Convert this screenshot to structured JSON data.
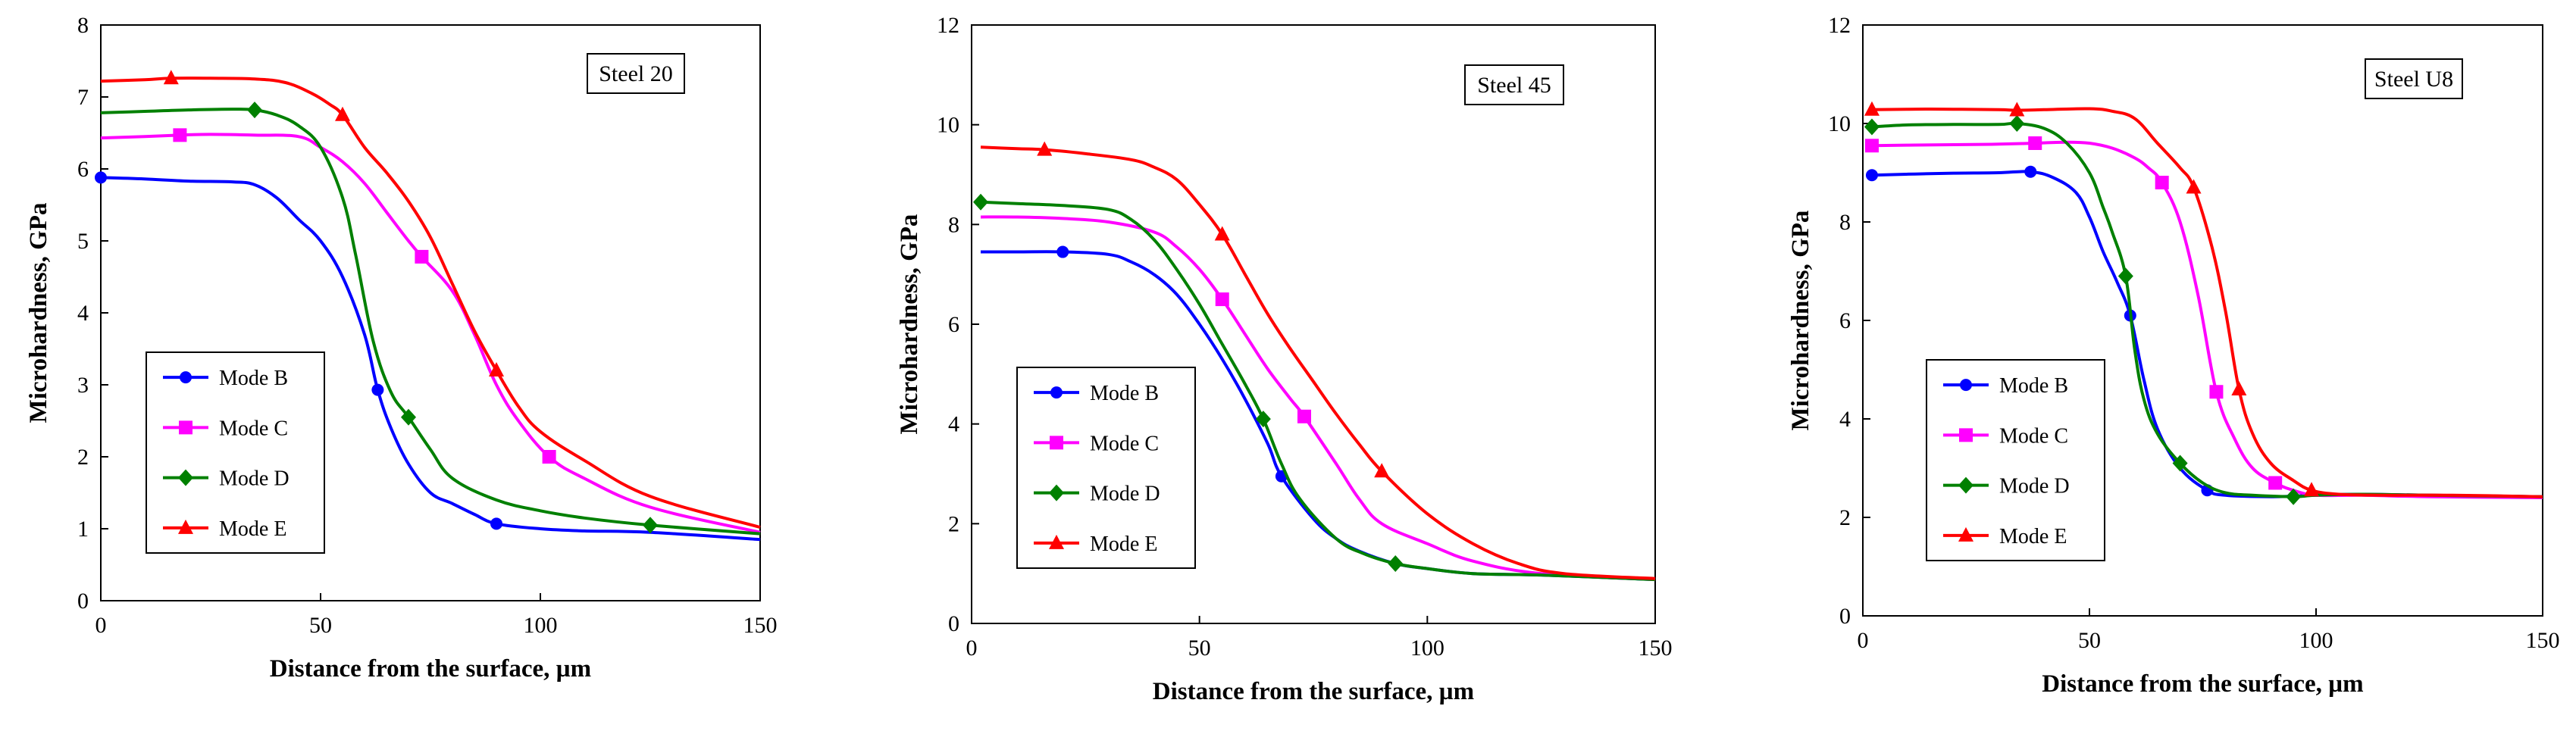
{
  "chart_data": [
    {
      "type": "line",
      "annotation": "Steel 20",
      "xlabel": "Distance from the surface, µm",
      "ylabel": "Microhardness, GPa",
      "xlim": [
        0,
        150
      ],
      "ylim": [
        0,
        8
      ],
      "xticks": [
        0,
        50,
        100,
        150
      ],
      "yticks": [
        0,
        1,
        2,
        3,
        4,
        5,
        6,
        7,
        8
      ],
      "legend_position": "bottom-left",
      "series": [
        {
          "name": "Mode B",
          "color": "#0000FF",
          "marker": "circle",
          "x": [
            0,
            10,
            20,
            30,
            35,
            40,
            45,
            50,
            55,
            60,
            63,
            66,
            70,
            75,
            80,
            85,
            90,
            100,
            110,
            125,
            150
          ],
          "y": [
            5.88,
            5.86,
            5.83,
            5.82,
            5.78,
            5.6,
            5.3,
            5.0,
            4.5,
            3.7,
            2.93,
            2.4,
            1.9,
            1.5,
            1.35,
            1.2,
            1.07,
            1.0,
            0.97,
            0.95,
            0.85
          ],
          "marker_indices": [
            0,
            10,
            16
          ]
        },
        {
          "name": "Mode C",
          "color": "#FF00FF",
          "marker": "square",
          "x": [
            0,
            10,
            18,
            25,
            35,
            45,
            50,
            55,
            60,
            65,
            70,
            73,
            80,
            85,
            90,
            95,
            102,
            110,
            125,
            150
          ],
          "y": [
            6.43,
            6.45,
            6.47,
            6.48,
            6.47,
            6.45,
            6.3,
            6.1,
            5.8,
            5.4,
            5.0,
            4.78,
            4.3,
            3.7,
            3.0,
            2.5,
            2.0,
            1.7,
            1.3,
            0.95
          ],
          "marker_indices": [
            2,
            11,
            16
          ]
        },
        {
          "name": "Mode D",
          "color": "#008000",
          "marker": "diamond",
          "x": [
            0,
            10,
            20,
            30,
            35,
            40,
            45,
            50,
            55,
            58,
            62,
            66,
            70,
            75,
            80,
            90,
            100,
            110,
            125,
            150
          ],
          "y": [
            6.78,
            6.8,
            6.82,
            6.83,
            6.82,
            6.75,
            6.6,
            6.3,
            5.6,
            4.8,
            3.6,
            2.9,
            2.55,
            2.1,
            1.7,
            1.4,
            1.25,
            1.15,
            1.05,
            0.93
          ],
          "marker_indices": [
            4,
            12,
            18
          ]
        },
        {
          "name": "Mode E",
          "color": "#FF0000",
          "marker": "triangle",
          "x": [
            0,
            10,
            16,
            25,
            35,
            42,
            48,
            52,
            55,
            60,
            65,
            70,
            75,
            80,
            85,
            90,
            95,
            100,
            110,
            125,
            150
          ],
          "y": [
            7.22,
            7.24,
            7.26,
            7.26,
            7.25,
            7.2,
            7.05,
            6.9,
            6.75,
            6.3,
            5.95,
            5.55,
            5.05,
            4.4,
            3.75,
            3.2,
            2.7,
            2.35,
            1.95,
            1.45,
            1.02
          ],
          "marker_indices": [
            2,
            8,
            15
          ]
        }
      ]
    },
    {
      "type": "line",
      "annotation": "Steel 45",
      "xlabel": "Distance from the surface, µm",
      "ylabel": "Microhardness, GPa",
      "xlim": [
        0,
        150
      ],
      "ylim": [
        0,
        12
      ],
      "xticks": [
        0,
        50,
        100,
        150
      ],
      "yticks": [
        0,
        2,
        4,
        6,
        8,
        10,
        12
      ],
      "legend_position": "bottom-left",
      "series": [
        {
          "name": "Mode B",
          "color": "#0000FF",
          "marker": "circle",
          "x": [
            2,
            10,
            20,
            30,
            35,
            40,
            45,
            50,
            55,
            60,
            65,
            68,
            75,
            80,
            85,
            93,
            100,
            110,
            125,
            150
          ],
          "y": [
            7.45,
            7.45,
            7.45,
            7.4,
            7.25,
            7.0,
            6.6,
            6.0,
            5.3,
            4.5,
            3.6,
            2.95,
            2.1,
            1.7,
            1.45,
            1.2,
            1.1,
            1.0,
            0.97,
            0.88
          ],
          "marker_indices": [
            2,
            11
          ]
        },
        {
          "name": "Mode C",
          "color": "#FF00FF",
          "marker": "square",
          "x": [
            2,
            10,
            20,
            30,
            40,
            45,
            50,
            55,
            60,
            65,
            70,
            73,
            80,
            85,
            90,
            100,
            110,
            125,
            150
          ],
          "y": [
            8.15,
            8.15,
            8.12,
            8.05,
            7.85,
            7.55,
            7.1,
            6.5,
            5.8,
            5.1,
            4.5,
            4.15,
            3.2,
            2.5,
            2.0,
            1.6,
            1.25,
            1.0,
            0.88
          ],
          "marker_indices": [
            7,
            11
          ]
        },
        {
          "name": "Mode D",
          "color": "#008000",
          "marker": "diamond",
          "x": [
            2,
            10,
            20,
            30,
            35,
            40,
            45,
            50,
            55,
            60,
            64,
            68,
            72,
            80,
            86,
            93,
            100,
            110,
            125,
            150
          ],
          "y": [
            8.45,
            8.42,
            8.38,
            8.3,
            8.1,
            7.7,
            7.1,
            6.4,
            5.6,
            4.8,
            4.1,
            3.2,
            2.5,
            1.7,
            1.4,
            1.2,
            1.1,
            1.0,
            0.97,
            0.88
          ],
          "marker_indices": [
            0,
            10,
            15
          ]
        },
        {
          "name": "Mode E",
          "color": "#FF0000",
          "marker": "triangle",
          "x": [
            2,
            10,
            16,
            25,
            35,
            40,
            45,
            50,
            55,
            60,
            65,
            70,
            75,
            80,
            85,
            90,
            100,
            110,
            120,
            130,
            150
          ],
          "y": [
            9.55,
            9.52,
            9.5,
            9.42,
            9.3,
            9.15,
            8.9,
            8.4,
            7.8,
            7.0,
            6.2,
            5.5,
            4.85,
            4.2,
            3.6,
            3.05,
            2.2,
            1.6,
            1.2,
            1.0,
            0.9
          ],
          "marker_indices": [
            2,
            8,
            15
          ]
        }
      ]
    },
    {
      "type": "line",
      "annotation": "Steel U8",
      "xlabel": "Distance from the surface, µm",
      "ylabel": "Microhardness, GPa",
      "xlim": [
        0,
        150
      ],
      "ylim": [
        0,
        12
      ],
      "xticks": [
        0,
        50,
        100,
        150
      ],
      "yticks": [
        0,
        2,
        4,
        6,
        8,
        10,
        12
      ],
      "legend_position": "bottom-left",
      "series": [
        {
          "name": "Mode B",
          "color": "#0000FF",
          "marker": "circle",
          "x": [
            2,
            10,
            20,
            30,
            37,
            42,
            47,
            50,
            53,
            56,
            59,
            62,
            65,
            70,
            76,
            80,
            90,
            100,
            110,
            125,
            150
          ],
          "y": [
            8.95,
            8.97,
            8.99,
            9.0,
            9.02,
            8.9,
            8.6,
            8.1,
            7.4,
            6.8,
            6.1,
            4.8,
            3.8,
            3.0,
            2.55,
            2.45,
            2.42,
            2.45,
            2.47,
            2.45,
            2.42
          ],
          "marker_indices": [
            0,
            4,
            10,
            14
          ]
        },
        {
          "name": "Mode C",
          "color": "#FF00FF",
          "marker": "square",
          "x": [
            2,
            10,
            20,
            30,
            38,
            45,
            50,
            55,
            60,
            63,
            66,
            70,
            74,
            78,
            82,
            86,
            91,
            95,
            100,
            110,
            125,
            150
          ],
          "y": [
            9.55,
            9.56,
            9.57,
            9.58,
            9.6,
            9.62,
            9.6,
            9.5,
            9.3,
            9.1,
            8.8,
            8.0,
            6.5,
            4.55,
            3.6,
            3.0,
            2.7,
            2.55,
            2.45,
            2.45,
            2.42,
            2.4
          ],
          "marker_indices": [
            0,
            4,
            10,
            13,
            16
          ]
        },
        {
          "name": "Mode D",
          "color": "#008000",
          "marker": "diamond",
          "x": [
            2,
            10,
            20,
            30,
            34,
            40,
            45,
            50,
            53,
            55,
            58,
            60,
            62,
            65,
            70,
            75,
            80,
            86,
            95,
            100,
            110,
            125,
            150
          ],
          "y": [
            9.93,
            9.97,
            9.98,
            9.98,
            10.0,
            9.9,
            9.6,
            9.0,
            8.3,
            7.8,
            6.9,
            5.4,
            4.4,
            3.7,
            3.1,
            2.7,
            2.5,
            2.45,
            2.42,
            2.45,
            2.47,
            2.45,
            2.42
          ],
          "marker_indices": [
            0,
            4,
            10,
            14,
            18
          ]
        },
        {
          "name": "Mode E",
          "color": "#FF0000",
          "marker": "triangle",
          "x": [
            2,
            10,
            20,
            30,
            34,
            40,
            50,
            55,
            60,
            65,
            70,
            73,
            77,
            80,
            83,
            86,
            90,
            95,
            99,
            105,
            115,
            130,
            150
          ],
          "y": [
            10.28,
            10.29,
            10.29,
            10.28,
            10.27,
            10.28,
            10.3,
            10.25,
            10.1,
            9.6,
            9.1,
            8.7,
            7.5,
            6.2,
            4.6,
            3.7,
            3.1,
            2.75,
            2.55,
            2.47,
            2.45,
            2.45,
            2.42
          ],
          "marker_indices": [
            0,
            4,
            11,
            14,
            18
          ]
        }
      ]
    }
  ]
}
